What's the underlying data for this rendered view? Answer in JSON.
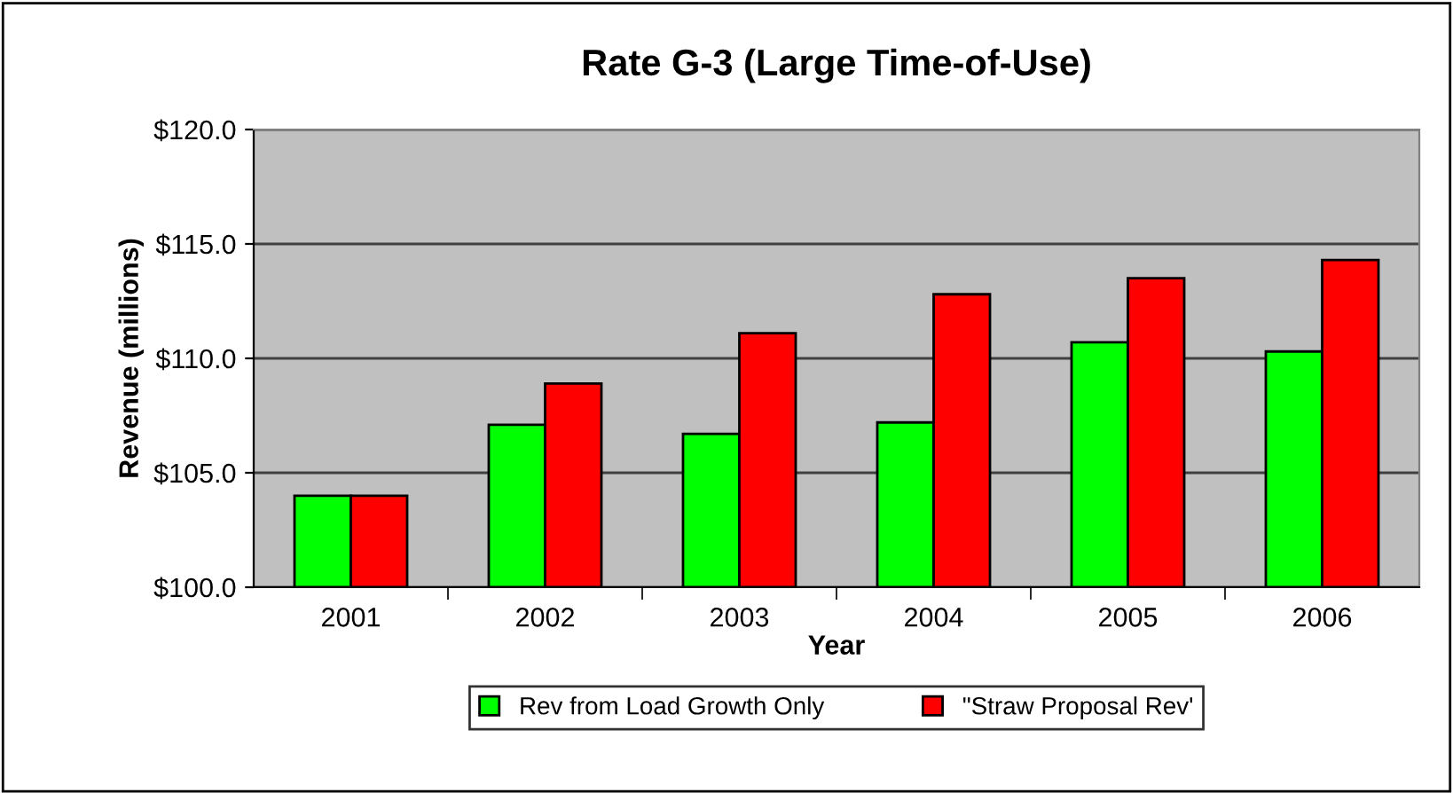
{
  "chart_data": {
    "type": "bar",
    "title": "Rate G-3 (Large Time-of-Use)",
    "xlabel": "Year",
    "ylabel": "Revenue (millions)",
    "categories": [
      "2001",
      "2002",
      "2003",
      "2004",
      "2005",
      "2006"
    ],
    "series": [
      {
        "name": "Rev from Load Growth Only",
        "color": "#00ff00",
        "values": [
          104.0,
          107.1,
          106.7,
          107.2,
          110.7,
          110.3
        ]
      },
      {
        "name": "\"Straw Proposal Rev'",
        "color": "#ff0000",
        "values": [
          104.0,
          108.9,
          111.1,
          112.8,
          113.5,
          114.3
        ]
      }
    ],
    "ylim": [
      100,
      120
    ],
    "yticks": [
      {
        "value": 100,
        "label": "$100.0"
      },
      {
        "value": 105,
        "label": "$105.0"
      },
      {
        "value": 110,
        "label": "$110.0"
      },
      {
        "value": 115,
        "label": "$115.0"
      },
      {
        "value": 120,
        "label": "$120.0"
      }
    ],
    "grid": "y",
    "legend": "bottom"
  }
}
